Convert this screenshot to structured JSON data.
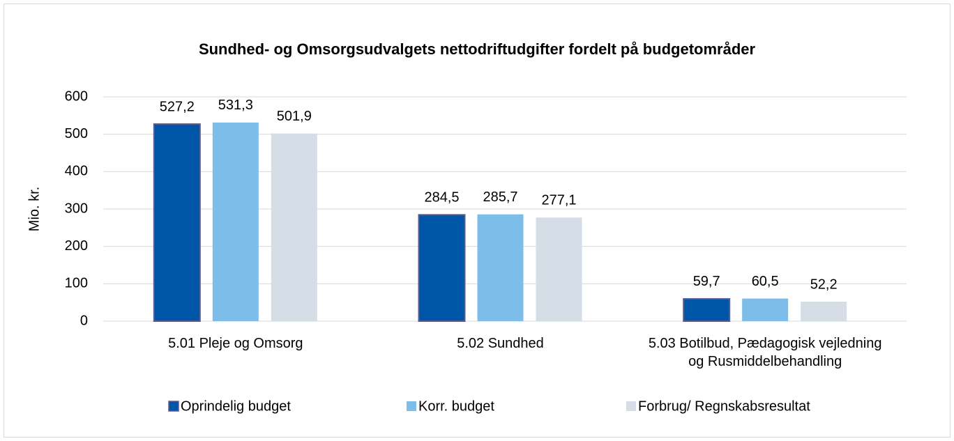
{
  "chart_data": {
    "type": "bar",
    "title": "Sundhed- og Omsorgsudvalgets nettodriftudgifter fordelt på budgetområder",
    "y_label": "Mio. kr.",
    "categories": [
      "5.01 Pleje og Omsorg",
      "5.02 Sundhed",
      "5.03 Botilbud, Pædagogisk vejledning og Rusmiddelbehandling"
    ],
    "series": [
      {
        "name": "Oprindelig budget",
        "color": "#0056a6",
        "values": [
          527.2,
          284.5,
          59.7
        ],
        "value_labels": [
          "527,2",
          "284,5",
          "59,7"
        ]
      },
      {
        "name": "Korr. budget",
        "color": "#7dbde9",
        "values": [
          531.3,
          285.7,
          60.5
        ],
        "value_labels": [
          "531,3",
          "285,7",
          "60,5"
        ]
      },
      {
        "name": "Forbrug/ Regnskabsresultat",
        "color": "#d5dee6",
        "values": [
          501.9,
          277.1,
          52.2
        ],
        "value_labels": [
          "501,9",
          "277,1",
          "52,2"
        ]
      }
    ],
    "ylim": [
      0,
      600
    ],
    "yticks": [
      0,
      100,
      200,
      300,
      400,
      500,
      600
    ],
    "grid": true,
    "legend": "bottom"
  }
}
